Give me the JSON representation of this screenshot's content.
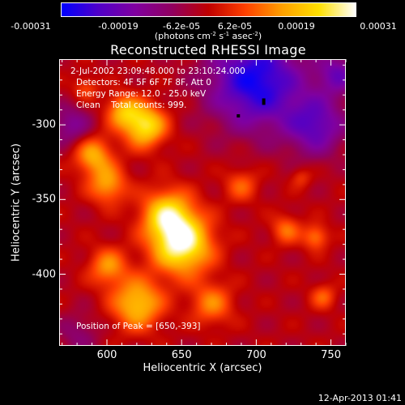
{
  "colorbar": {
    "ticks": [
      "-0.00031",
      "-0.00019",
      "-6.2e-05",
      "6.2e-05",
      "0.00019",
      "0.00031"
    ],
    "unit_prefix": "(photons cm",
    "unit_exp1": "-2",
    "unit_mid": " s",
    "unit_exp2": "-1",
    "unit_mid2": " asec",
    "unit_exp3": "-2",
    "unit_suffix": ")",
    "min": -0.00031,
    "max": 0.00031,
    "colors": [
      "#0000ff",
      "#5000c8",
      "#8000a0",
      "#900060",
      "#c00000",
      "#ff4000",
      "#ffa000",
      "#ffe000",
      "#ffffff"
    ]
  },
  "title": "Reconstructed RHESSI Image",
  "annotations": {
    "time_range": "2-Jul-2002 23:09:48.000 to 23:10:24.000",
    "detectors": "Detectors: 4F 5F 6F 7F 8F, Att 0",
    "energy_range": "Energy Range: 12.0 - 25.0 keV",
    "clean_counts": "Clean    Total counts: 999.",
    "peak_position": "Position of Peak = [650,-393]"
  },
  "axes": {
    "xlabel": "Heliocentric X (arcsec)",
    "ylabel": "Heliocentric Y (arcsec)",
    "xticks": [
      "600",
      "650",
      "700",
      "750"
    ],
    "yticks": [
      "-300",
      "-350",
      "-400"
    ],
    "xlim": [
      568,
      760
    ],
    "ylim": [
      -448,
      -256
    ]
  },
  "timestamp": "12-Apr-2013 01:41",
  "chart_data": {
    "type": "heatmap",
    "title": "Reconstructed RHESSI Image",
    "xlabel": "Heliocentric X (arcsec)",
    "ylabel": "Heliocentric Y (arcsec)",
    "xlim": [
      568,
      760
    ],
    "ylim": [
      -448,
      -256
    ],
    "value_range": [
      -0.00031,
      0.00031
    ],
    "peak_position": [
      650,
      -393
    ],
    "sources_normalized": [
      {
        "x": 650,
        "y": -380,
        "amp": 1.0,
        "sigma": 14
      },
      {
        "x": 640,
        "y": -360,
        "amp": 0.75,
        "sigma": 12
      },
      {
        "x": 625,
        "y": -300,
        "amp": 0.85,
        "sigma": 10
      },
      {
        "x": 610,
        "y": -290,
        "amp": 0.55,
        "sigma": 8
      },
      {
        "x": 590,
        "y": -320,
        "amp": 0.6,
        "sigma": 9
      },
      {
        "x": 600,
        "y": -340,
        "amp": 0.55,
        "sigma": 9
      },
      {
        "x": 620,
        "y": -420,
        "amp": 0.7,
        "sigma": 12
      },
      {
        "x": 600,
        "y": -395,
        "amp": 0.5,
        "sigma": 9
      },
      {
        "x": 670,
        "y": -420,
        "amp": 0.45,
        "sigma": 10
      },
      {
        "x": 690,
        "y": -340,
        "amp": 0.35,
        "sigma": 8
      },
      {
        "x": 720,
        "y": -370,
        "amp": 0.4,
        "sigma": 7
      },
      {
        "x": 740,
        "y": -375,
        "amp": 0.45,
        "sigma": 6
      },
      {
        "x": 745,
        "y": -415,
        "amp": 0.35,
        "sigma": 6
      },
      {
        "x": 730,
        "y": -335,
        "amp": 0.25,
        "sigma": 5
      },
      {
        "x": 585,
        "y": -275,
        "amp": 0.3,
        "sigma": 6
      },
      {
        "x": 700,
        "y": -270,
        "amp": -0.9,
        "sigma": 22
      },
      {
        "x": 740,
        "y": -300,
        "amp": -0.6,
        "sigma": 14
      },
      {
        "x": 755,
        "y": -265,
        "amp": -0.5,
        "sigma": 10
      },
      {
        "x": 575,
        "y": -300,
        "amp": -0.4,
        "sigma": 10
      },
      {
        "x": 580,
        "y": -440,
        "amp": -0.25,
        "sigma": 10
      }
    ]
  }
}
